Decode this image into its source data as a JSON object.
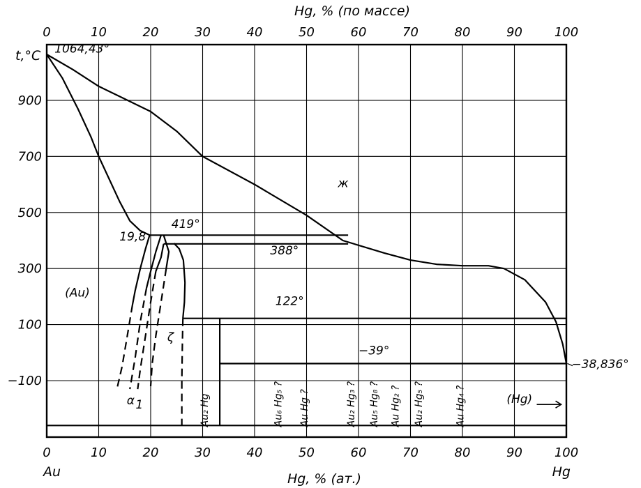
{
  "chart_data": {
    "type": "line",
    "title": "",
    "x_axis_top": {
      "label": "Hg, % (по массе)",
      "ticks": [
        "0",
        "10",
        "20",
        "30",
        "40",
        "50",
        "60",
        "70",
        "80",
        "90",
        "100"
      ]
    },
    "x_axis_bottom": {
      "label": "Hg, % (ат.)",
      "ticks": [
        "0",
        "10",
        "20",
        "30",
        "40",
        "50",
        "60",
        "70",
        "80",
        "90",
        "100"
      ],
      "left_end_label": "Au",
      "right_end_label": "Hg"
    },
    "y_axis": {
      "label": "t,°C",
      "ticks": [
        {
          "value": 900,
          "label": "900"
        },
        {
          "value": 700,
          "label": "700"
        },
        {
          "value": 500,
          "label": "500"
        },
        {
          "value": 300,
          "label": "300"
        },
        {
          "value": 100,
          "label": "100"
        },
        {
          "value": -100,
          "label": "−100"
        }
      ]
    },
    "xlim": [
      0,
      100
    ],
    "ylim": [
      -280,
      1100
    ],
    "grid": true,
    "series": [
      {
        "id": "liquidus",
        "style": "solid",
        "points": [
          [
            0,
            1064
          ],
          [
            5,
            1010
          ],
          [
            10,
            950
          ],
          [
            15,
            905
          ],
          [
            20,
            860
          ],
          [
            25,
            790
          ],
          [
            30,
            700
          ],
          [
            40,
            600
          ],
          [
            50,
            490
          ],
          [
            57,
            400
          ],
          [
            65,
            355
          ],
          [
            70,
            330
          ],
          [
            75,
            315
          ],
          [
            80,
            310
          ],
          [
            85,
            310
          ],
          [
            88,
            300
          ],
          [
            92,
            260
          ],
          [
            96,
            180
          ],
          [
            98,
            110
          ],
          [
            99.3,
            30
          ],
          [
            100,
            -39
          ]
        ]
      },
      {
        "id": "solidus",
        "style": "solid",
        "points": [
          [
            0,
            1064
          ],
          [
            3,
            980
          ],
          [
            6,
            870
          ],
          [
            8.5,
            770
          ],
          [
            10,
            700
          ],
          [
            12,
            620
          ],
          [
            14,
            540
          ],
          [
            16,
            470
          ],
          [
            18,
            435
          ],
          [
            19.8,
            419
          ]
        ]
      },
      {
        "id": "peritectic-419",
        "style": "solid",
        "points": [
          [
            19.8,
            419
          ],
          [
            58,
            419
          ]
        ]
      },
      {
        "id": "peritectic-388",
        "style": "solid",
        "points": [
          [
            22.5,
            388
          ],
          [
            58,
            388
          ]
        ]
      },
      {
        "id": "solvus-au",
        "style": "solid",
        "points": [
          [
            19.8,
            419
          ],
          [
            19,
            370
          ],
          [
            18,
            300
          ],
          [
            17,
            220
          ],
          [
            16.5,
            170
          ]
        ]
      },
      {
        "id": "solvus-au-dashed",
        "style": "dashed",
        "points": [
          [
            16.5,
            170
          ],
          [
            15.5,
            60
          ],
          [
            14.5,
            -50
          ],
          [
            13.5,
            -130
          ]
        ]
      },
      {
        "id": "alpha1-left",
        "style": "solid",
        "points": [
          [
            22,
            419
          ],
          [
            21,
            360
          ],
          [
            20,
            290
          ],
          [
            19.2,
            230
          ]
        ]
      },
      {
        "id": "alpha1-left-dashed",
        "style": "dashed",
        "points": [
          [
            19.2,
            230
          ],
          [
            18,
            110
          ],
          [
            17,
            -20
          ],
          [
            16,
            -130
          ]
        ]
      },
      {
        "id": "alpha1-right",
        "style": "solid",
        "points": [
          [
            22.5,
            388
          ],
          [
            22,
            340
          ],
          [
            21,
            290
          ]
        ]
      },
      {
        "id": "alpha1-right-dashed",
        "style": "dashed",
        "points": [
          [
            21,
            290
          ],
          [
            20,
            180
          ],
          [
            19,
            60
          ],
          [
            18,
            -60
          ],
          [
            17.5,
            -130
          ]
        ]
      },
      {
        "id": "zeta-left",
        "style": "solid",
        "points": [
          [
            22.5,
            419
          ],
          [
            23.5,
            360
          ],
          [
            23,
            300
          ]
        ]
      },
      {
        "id": "zeta-left-dashed",
        "style": "dashed",
        "points": [
          [
            23,
            300
          ],
          [
            22,
            180
          ],
          [
            21,
            60
          ],
          [
            20.3,
            -40
          ],
          [
            20,
            -120
          ]
        ]
      },
      {
        "id": "zeta-right",
        "style": "solid",
        "points": [
          [
            24.5,
            390
          ],
          [
            25.5,
            370
          ],
          [
            26.3,
            330
          ],
          [
            26.6,
            250
          ],
          [
            26.5,
            180
          ],
          [
            26.2,
            122
          ]
        ]
      },
      {
        "id": "zeta-right-dashed",
        "style": "dashed",
        "points": [
          [
            26.2,
            122
          ],
          [
            26.1,
            20
          ],
          [
            26,
            -100
          ],
          [
            26,
            -260
          ]
        ]
      },
      {
        "id": "eutectoid-122",
        "style": "solid",
        "points": [
          [
            26.2,
            122
          ],
          [
            100,
            122
          ]
        ]
      },
      {
        "id": "au2hg-line",
        "style": "solid",
        "points": [
          [
            33.3,
            122
          ],
          [
            33.3,
            -260
          ]
        ]
      },
      {
        "id": "line-minus39",
        "style": "solid",
        "points": [
          [
            33.3,
            -39
          ],
          [
            100,
            -39
          ]
        ]
      },
      {
        "id": "bottom-line",
        "style": "solid",
        "points": [
          [
            0,
            -260
          ],
          [
            100,
            -260
          ]
        ]
      }
    ],
    "annotations": [
      {
        "text": "1064,43°",
        "x": 1.5,
        "y": 1070
      },
      {
        "text": "419°",
        "x": 24,
        "y": 445
      },
      {
        "text": "388°",
        "x": 43,
        "y": 350
      },
      {
        "text": "19,8",
        "x": 14,
        "y": 400
      },
      {
        "text": "122°",
        "x": 44,
        "y": 170
      },
      {
        "text": "−39°",
        "x": 60,
        "y": -7
      },
      {
        "text": "−38,836°",
        "x": 101,
        "y": -55
      },
      {
        "text": "ж",
        "x": 56,
        "y": 590
      },
      {
        "text": "(Au)",
        "x": 3.5,
        "y": 200
      },
      {
        "text": "ζ",
        "x": 23.2,
        "y": 40
      },
      {
        "text": "α",
        "x": 15.4,
        "y": -185
      },
      {
        "text": "1",
        "x": 17.1,
        "y": -200
      },
      {
        "text": "(Hg)",
        "x": 88.5,
        "y": -180
      }
    ],
    "phase_labels": [
      {
        "text": "Au₂ Hg",
        "x": 31,
        "y": -265
      },
      {
        "text": "Au₆ Hg₅ ?",
        "x": 45.2,
        "y": -265
      },
      {
        "text": "Au Hg ?",
        "x": 50.2,
        "y": -265
      },
      {
        "text": "Au₂ Hg₃ ?",
        "x": 59.2,
        "y": -265
      },
      {
        "text": "Au₅ Hg₈ ?",
        "x": 63.6,
        "y": -265
      },
      {
        "text": "Au Hg₂ ?",
        "x": 67.7,
        "y": -265
      },
      {
        "text": "Au₂ Hg₅ ?",
        "x": 72.2,
        "y": -265
      },
      {
        "text": "Au Hg₄ ?",
        "x": 80.2,
        "y": -265
      }
    ]
  }
}
